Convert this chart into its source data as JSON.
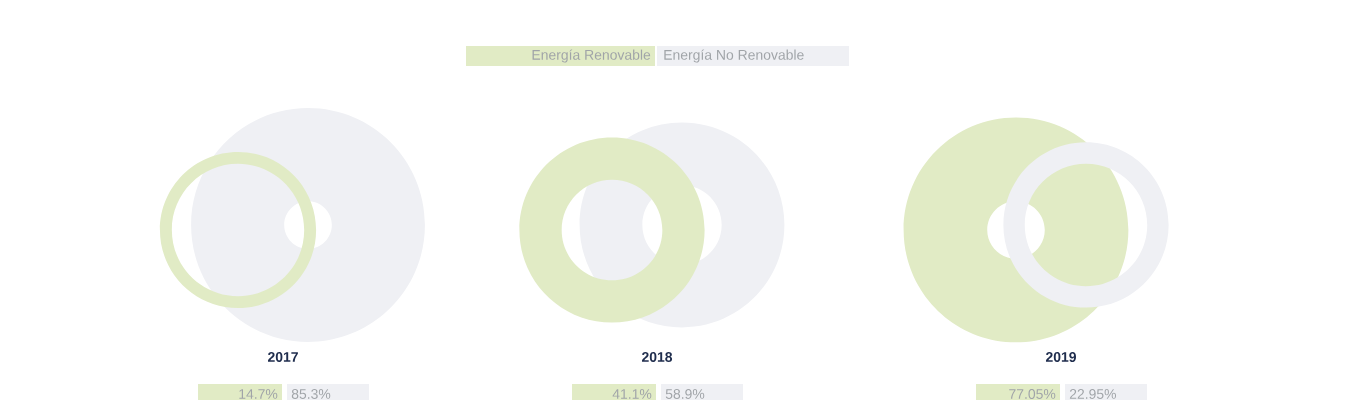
{
  "chart_data": {
    "type": "other",
    "categories": [
      "2017",
      "2018",
      "2019"
    ],
    "legend": "top",
    "series": [
      {
        "name": "Energía Renovable",
        "color": "#e1ebc5",
        "values": [
          14.7,
          41.1,
          77.05
        ],
        "value_labels": [
          "14.7%",
          "41.1%",
          "77.05%"
        ]
      },
      {
        "name": "Energía No Renovable",
        "color": "#eff0f4",
        "values": [
          85.3,
          58.9,
          22.95
        ],
        "value_labels": [
          "85.3%",
          "58.9%",
          "22.95%"
        ]
      }
    ]
  }
}
